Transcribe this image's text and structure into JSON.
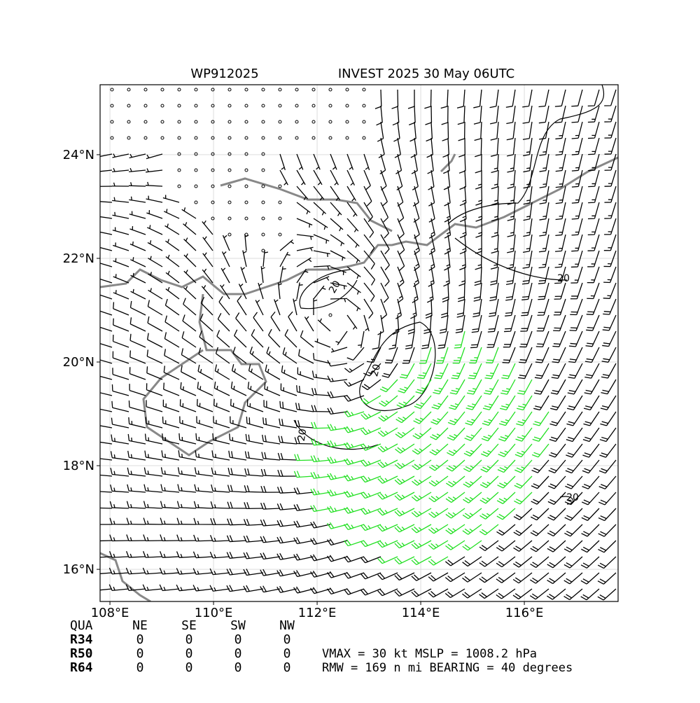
{
  "chart_data": {
    "type": "wind-map",
    "title_left": "WP912025",
    "title_right": "INVEST 2025 30 May 06UTC",
    "xlim": [
      107.81,
      117.81
    ],
    "ylim": [
      15.38,
      25.35
    ],
    "xticks": [
      {
        "value": 108,
        "label": "108°E"
      },
      {
        "value": 110,
        "label": "110°E"
      },
      {
        "value": 112,
        "label": "112°E"
      },
      {
        "value": 114,
        "label": "114°E"
      },
      {
        "value": 116,
        "label": "116°E"
      }
    ],
    "yticks": [
      {
        "value": 16,
        "label": "16°N"
      },
      {
        "value": 18,
        "label": "18°N"
      },
      {
        "value": 20,
        "label": "20°N"
      },
      {
        "value": 22,
        "label": "22°N"
      },
      {
        "value": 24,
        "label": "24°N"
      }
    ],
    "grid": true,
    "contour_labels": [
      "20",
      "20",
      "20",
      "20",
      "20"
    ]
  },
  "quadrant_table": {
    "header": [
      "QUA",
      "NE",
      "SE",
      "SW",
      "NW"
    ],
    "rows": [
      [
        "R34",
        "0",
        "0",
        "0",
        "0"
      ],
      [
        "R50",
        "0",
        "0",
        "0",
        "0"
      ],
      [
        "R64",
        "0",
        "0",
        "0",
        "0"
      ]
    ]
  },
  "info": [
    "VMAX =  30 kt MSLP = 1008.2 hPa",
    "RMW = 169 n mi BEARING =  40 degrees"
  ]
}
